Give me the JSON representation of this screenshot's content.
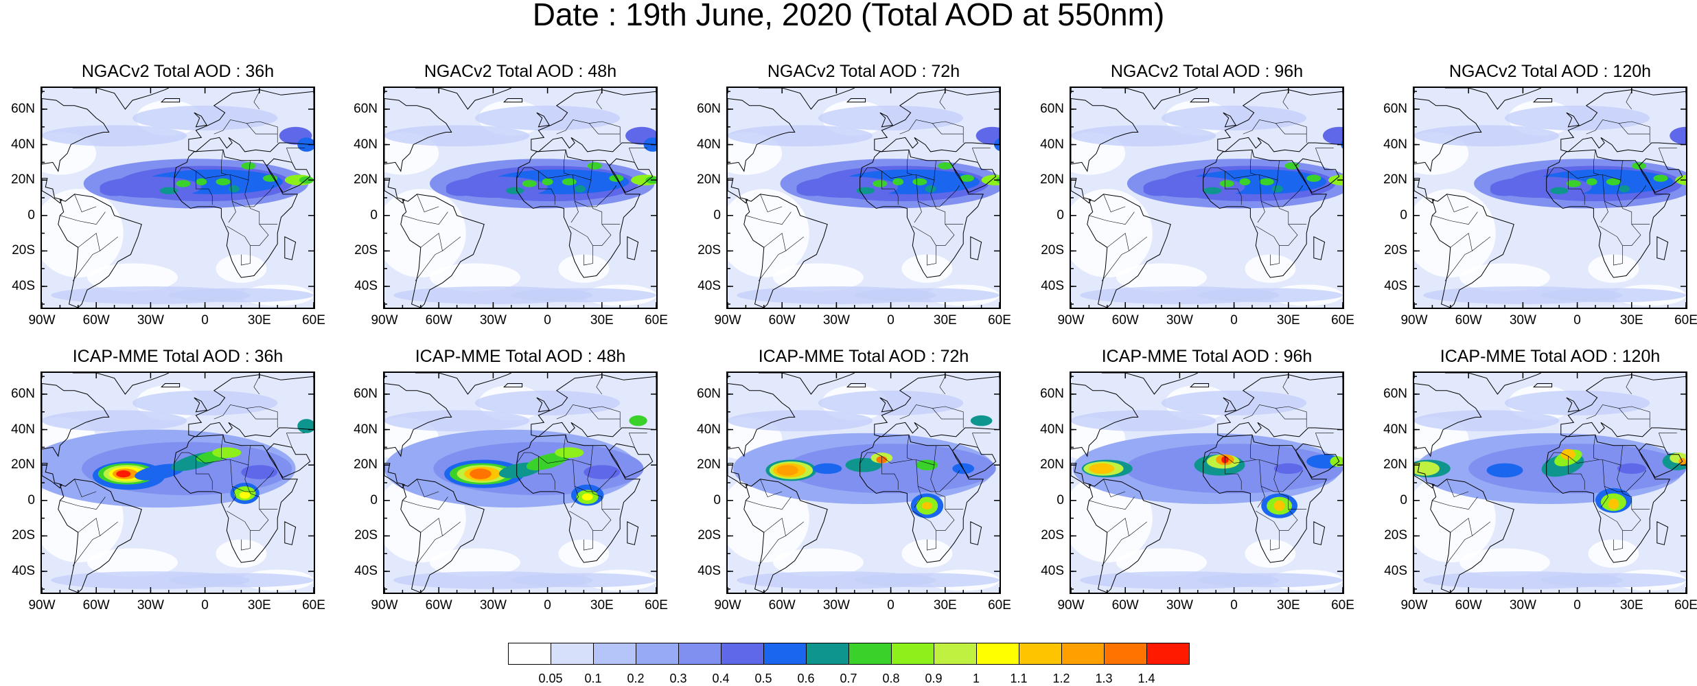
{
  "title": "Date : 19th June, 2020 (Total AOD at 550nm)",
  "panels": [
    {
      "id": "ngac-36",
      "model": "NGACv2",
      "lead": "36h",
      "title": "NGACv2 Total AOD : 36h"
    },
    {
      "id": "ngac-48",
      "model": "NGACv2",
      "lead": "48h",
      "title": "NGACv2 Total AOD : 48h"
    },
    {
      "id": "ngac-72",
      "model": "NGACv2",
      "lead": "72h",
      "title": "NGACv2 Total AOD : 72h"
    },
    {
      "id": "ngac-96",
      "model": "NGACv2",
      "lead": "96h",
      "title": "NGACv2 Total AOD : 96h"
    },
    {
      "id": "ngac-120",
      "model": "NGACv2",
      "lead": "120h",
      "title": "NGACv2 Total AOD : 120h"
    },
    {
      "id": "icap-36",
      "model": "ICAP-MME",
      "lead": "36h",
      "title": "ICAP-MME Total AOD : 36h"
    },
    {
      "id": "icap-48",
      "model": "ICAP-MME",
      "lead": "48h",
      "title": "ICAP-MME Total AOD : 48h"
    },
    {
      "id": "icap-72",
      "model": "ICAP-MME",
      "lead": "72h",
      "title": "ICAP-MME Total AOD : 72h"
    },
    {
      "id": "icap-96",
      "model": "ICAP-MME",
      "lead": "96h",
      "title": "ICAP-MME Total AOD : 96h"
    },
    {
      "id": "icap-120",
      "model": "ICAP-MME",
      "lead": "120h",
      "title": "ICAP-MME Total AOD : 120h"
    }
  ],
  "lat_ticks": [
    "60N",
    "40N",
    "20N",
    "0",
    "20S",
    "40S"
  ],
  "lon_ticks": [
    "90W",
    "60W",
    "30W",
    "0",
    "30E",
    "60E"
  ],
  "colorbar": {
    "labels": [
      "0.05",
      "0.1",
      "0.2",
      "0.3",
      "0.4",
      "0.5",
      "0.6",
      "0.7",
      "0.8",
      "0.9",
      "1",
      "1.1",
      "1.2",
      "1.3",
      "1.4"
    ],
    "colors": [
      "#ffffff",
      "#d7e0fb",
      "#b5c4f9",
      "#97aaf5",
      "#8090f0",
      "#5f68e8",
      "#1a66ee",
      "#0e968e",
      "#3ad22a",
      "#8ef01a",
      "#c0f040",
      "#ffff00",
      "#ffc400",
      "#ffa000",
      "#ff7400",
      "#ff1a00"
    ]
  },
  "ticks_lat_values": [
    60,
    40,
    20,
    0,
    -20,
    -40
  ],
  "ticks_lon_values": [
    -90,
    -60,
    -30,
    0,
    30,
    60
  ]
}
